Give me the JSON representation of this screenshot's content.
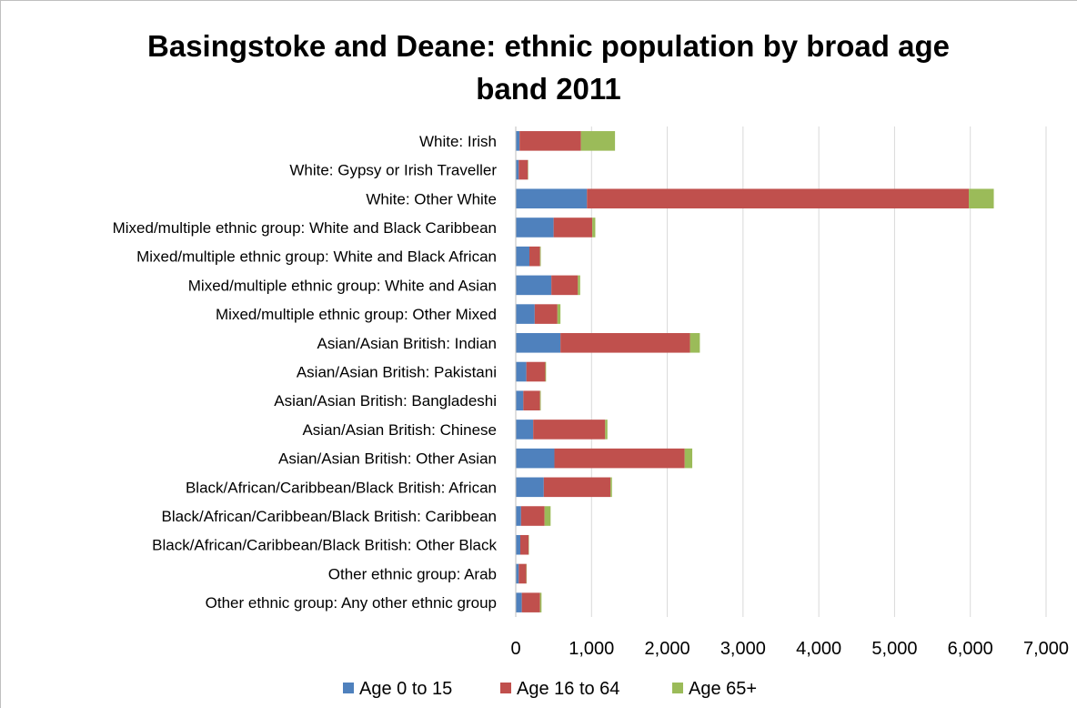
{
  "chart_data": {
    "type": "bar",
    "orientation": "horizontal",
    "stacked": true,
    "title": "Basingstoke and Deane: ethnic population by broad age band 2011",
    "title_lines": [
      "Basingstoke and Deane: ethnic population by broad age",
      "band 2011"
    ],
    "xlabel": "",
    "ylabel": "",
    "xlim": [
      0,
      7000
    ],
    "x_ticks": [
      0,
      1000,
      2000,
      3000,
      4000,
      5000,
      6000,
      7000
    ],
    "x_tick_labels": [
      "0",
      "1,000",
      "2,000",
      "3,000",
      "4,000",
      "5,000",
      "6,000",
      "7,000"
    ],
    "grid": true,
    "legend_position": "bottom",
    "categories": [
      "White: Irish",
      "White: Gypsy or Irish Traveller",
      "White: Other White",
      "Mixed/multiple ethnic group: White and Black Caribbean",
      "Mixed/multiple ethnic group: White and Black African",
      "Mixed/multiple ethnic group: White and Asian",
      "Mixed/multiple ethnic group: Other Mixed",
      "Asian/Asian British: Indian",
      "Asian/Asian British: Pakistani",
      "Asian/Asian British: Bangladeshi",
      "Asian/Asian British: Chinese",
      "Asian/Asian British: Other Asian",
      "Black/African/Caribbean/Black British: African",
      "Black/African/Caribbean/Black British: Caribbean",
      "Black/African/Caribbean/Black British: Other Black",
      "Other ethnic group: Arab",
      "Other ethnic group: Any other ethnic group"
    ],
    "series": [
      {
        "name": "Age 0 to 15",
        "color": "#4f81bd",
        "values": [
          50,
          40,
          940,
          500,
          180,
          470,
          250,
          590,
          140,
          100,
          230,
          510,
          370,
          70,
          60,
          40,
          80
        ]
      },
      {
        "name": "Age 16 to 64",
        "color": "#c0504d",
        "values": [
          810,
          120,
          5040,
          510,
          140,
          350,
          300,
          1710,
          250,
          220,
          950,
          1720,
          880,
          310,
          110,
          100,
          240
        ]
      },
      {
        "name": "Age 65+",
        "color": "#9bbb59",
        "values": [
          450,
          5,
          330,
          40,
          10,
          30,
          40,
          130,
          10,
          10,
          30,
          100,
          20,
          80,
          5,
          5,
          20
        ]
      }
    ]
  }
}
